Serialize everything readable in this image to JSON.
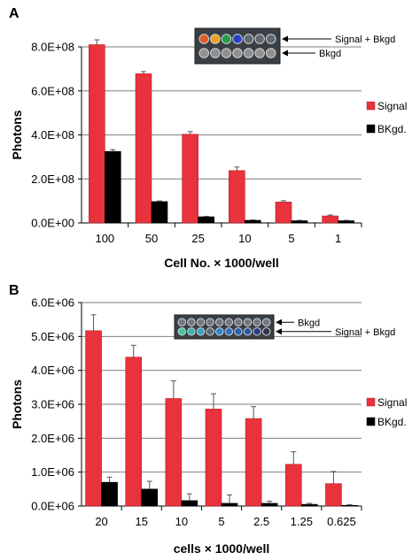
{
  "chart_data": [
    {
      "panel_label": "A",
      "type": "bar",
      "categories": [
        "100",
        "50",
        "25",
        "10",
        "5",
        "1"
      ],
      "series": [
        {
          "name": "Signal",
          "color": "#e8323c",
          "values": [
            810000000,
            678000000,
            403000000,
            238000000,
            95000000,
            32000000
          ],
          "errors": [
            22000000,
            10000000,
            12000000,
            16000000,
            6000000,
            4000000
          ]
        },
        {
          "name": "BKgd.",
          "color": "#000000",
          "values": [
            325000000,
            97000000,
            28000000,
            12000000,
            10000000,
            10000000
          ],
          "errors": [
            8000000,
            3000000,
            2000000,
            2000000,
            2000000,
            2000000
          ]
        }
      ],
      "ylim": [
        0,
        800000000
      ],
      "yticks": [
        "0.0E+00",
        "2.0E+08",
        "4.0E+08",
        "6.0E+08",
        "8.0E+08"
      ],
      "ylabel": "Photons",
      "xlabel": "Cell No. × 1000/well",
      "grid": true,
      "legend_position": "right",
      "annotations": [
        "Signal + Bkgd",
        "Bkgd"
      ],
      "inset_wells": {
        "top_row": [
          "#e05a28",
          "#f0a020",
          "#2a9a4a",
          "#2840c8",
          "#606870",
          "#606870",
          "#606870"
        ],
        "bottom_row": [
          "#909090",
          "#909090",
          "#909090",
          "#909090",
          "#909090",
          "#909090",
          "#909090"
        ]
      }
    },
    {
      "panel_label": "B",
      "type": "bar",
      "categories": [
        "20",
        "15",
        "10",
        "5",
        "2.5",
        "1.25",
        "0.625"
      ],
      "series": [
        {
          "name": "Signal",
          "color": "#e8323c",
          "values": [
            5170000,
            4390000,
            3170000,
            2860000,
            2580000,
            1230000,
            660000
          ],
          "errors": [
            470000,
            350000,
            520000,
            450000,
            350000,
            370000,
            360000
          ]
        },
        {
          "name": "BKgd.",
          "color": "#000000",
          "values": [
            700000,
            500000,
            160000,
            80000,
            80000,
            50000,
            20000
          ],
          "errors": [
            150000,
            230000,
            200000,
            250000,
            60000,
            30000,
            20000
          ]
        }
      ],
      "ylim": [
        0,
        6000000
      ],
      "yticks": [
        "0.0E+06",
        "1.0E+06",
        "2.0E+06",
        "3.0E+06",
        "4.0E+06",
        "5.0E+06",
        "6.0E+06"
      ],
      "ylabel": "Photons",
      "xlabel": "cells × 1000/well",
      "grid": true,
      "legend_position": "right",
      "annotations": [
        "Bkgd",
        "Signal + Bkgd"
      ],
      "inset_wells": {
        "top_row": [
          "#707880",
          "#707880",
          "#707880",
          "#707880",
          "#707880",
          "#707880",
          "#707880",
          "#707880",
          "#707880",
          "#707880"
        ],
        "bottom_row": [
          "#40c8a0",
          "#38b8b0",
          "#3aa0c8",
          "#5a6870",
          "#2a8ad0",
          "#3070c0",
          "#2860b0",
          "#2858a0",
          "#283c80",
          "#303848"
        ]
      }
    }
  ]
}
